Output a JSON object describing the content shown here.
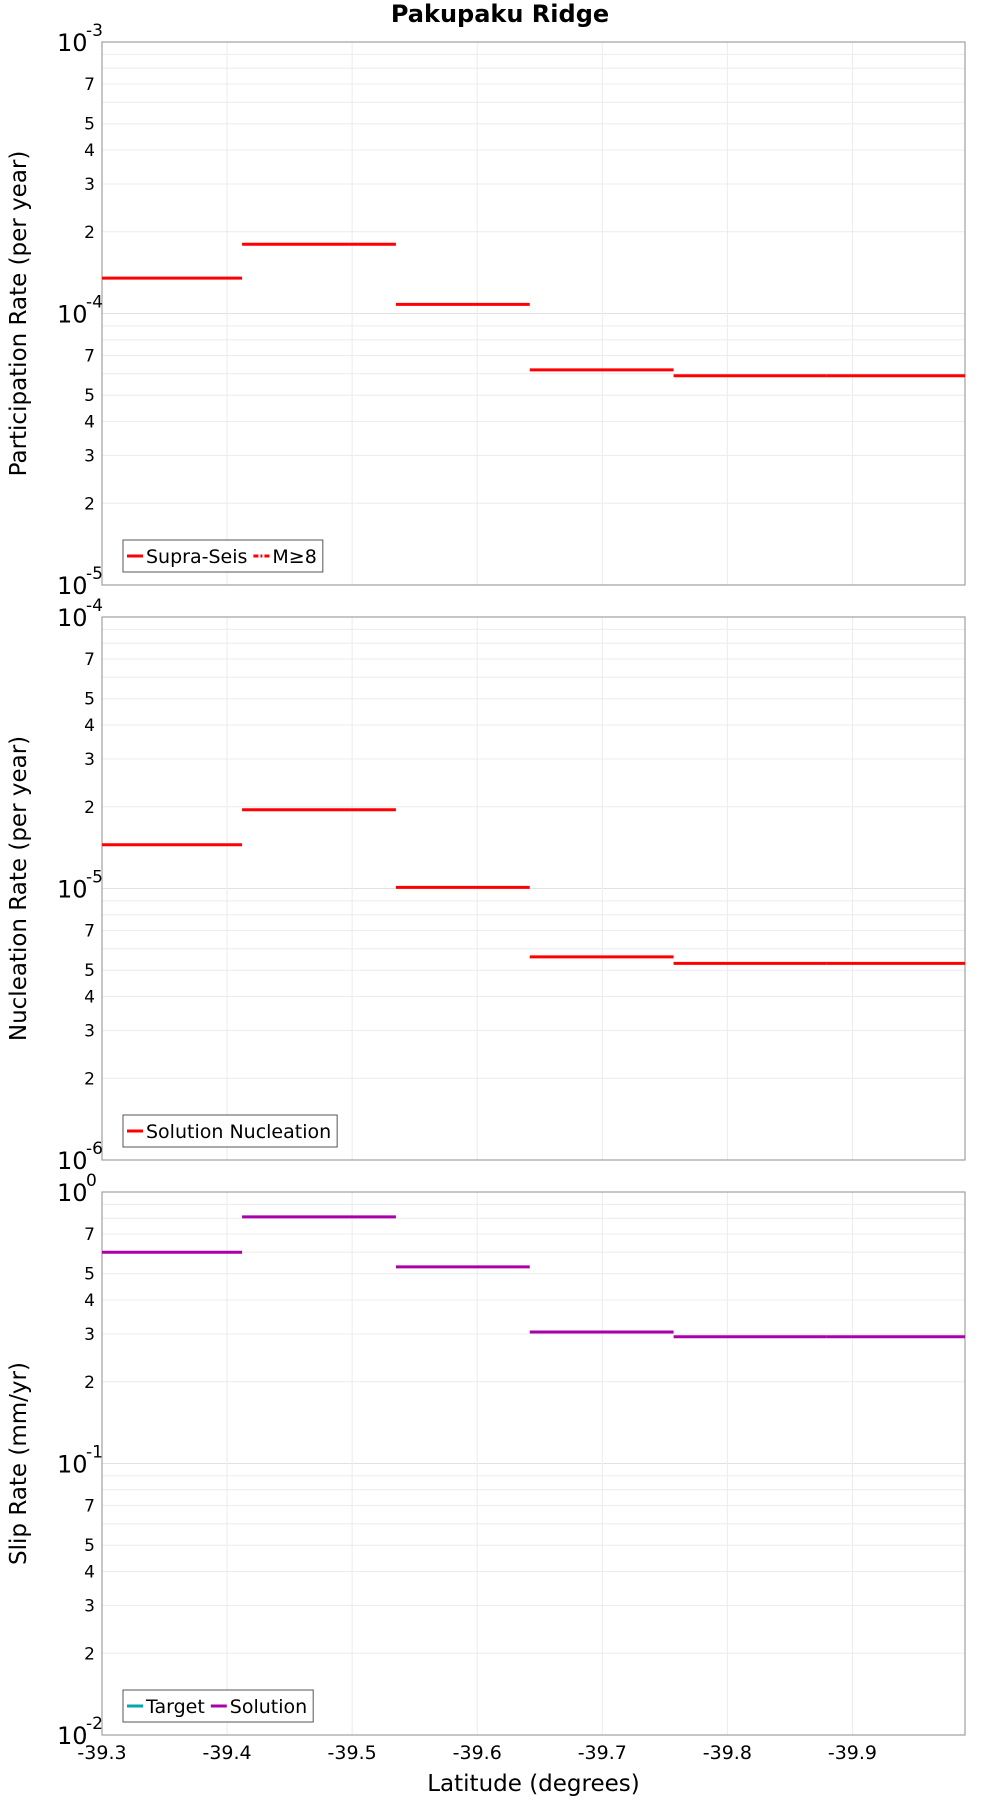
{
  "chart_data": [
    {
      "type": "line",
      "title": "Pakupaku Ridge",
      "ylabel": "Participation Rate (per year)",
      "xlabel": "",
      "scale": "log",
      "ylim": [
        1e-05,
        0.001
      ],
      "xlim": [
        -39.3,
        -39.99
      ],
      "major_ticks": [
        {
          "value": 1e-05,
          "base": "10",
          "exp": "-5"
        },
        {
          "value": 0.0001,
          "base": "10",
          "exp": "-4"
        },
        {
          "value": 0.001,
          "base": "10",
          "exp": "-3"
        }
      ],
      "minor_tick_labels": [
        "2",
        "3",
        "4",
        "5",
        "7"
      ],
      "series": [
        {
          "name": "Supra-Seis",
          "color": "#ff0000",
          "style": "solid",
          "segments": [
            {
              "x0": -39.3,
              "x1": -39.412,
              "y": 0.000135
            },
            {
              "x0": -39.412,
              "x1": -39.535,
              "y": 0.00018
            },
            {
              "x0": -39.535,
              "x1": -39.642,
              "y": 0.000108
            },
            {
              "x0": -39.642,
              "x1": -39.757,
              "y": 6.2e-05
            },
            {
              "x0": -39.757,
              "x1": -39.879,
              "y": 5.9e-05
            },
            {
              "x0": -39.879,
              "x1": -39.99,
              "y": 5.9e-05
            }
          ]
        },
        {
          "name": "M≥8",
          "color": "#ff0000",
          "style": "dashdot",
          "segments": []
        }
      ]
    },
    {
      "type": "line",
      "title": "",
      "ylabel": "Nucleation Rate (per year)",
      "xlabel": "",
      "scale": "log",
      "ylim": [
        1e-06,
        0.0001
      ],
      "xlim": [
        -39.3,
        -39.99
      ],
      "major_ticks": [
        {
          "value": 1e-06,
          "base": "10",
          "exp": "-6"
        },
        {
          "value": 1e-05,
          "base": "10",
          "exp": "-5"
        },
        {
          "value": 0.0001,
          "base": "10",
          "exp": "-4"
        }
      ],
      "minor_tick_labels": [
        "2",
        "3",
        "4",
        "5",
        "7"
      ],
      "series": [
        {
          "name": "Solution Nucleation",
          "color": "#ff0000",
          "style": "solid",
          "segments": [
            {
              "x0": -39.3,
              "x1": -39.412,
              "y": 1.45e-05
            },
            {
              "x0": -39.412,
              "x1": -39.535,
              "y": 1.95e-05
            },
            {
              "x0": -39.535,
              "x1": -39.642,
              "y": 1.01e-05
            },
            {
              "x0": -39.642,
              "x1": -39.757,
              "y": 5.6e-06
            },
            {
              "x0": -39.757,
              "x1": -39.879,
              "y": 5.3e-06
            },
            {
              "x0": -39.879,
              "x1": -39.99,
              "y": 5.3e-06
            }
          ]
        }
      ]
    },
    {
      "type": "line",
      "title": "",
      "ylabel": "Slip Rate (mm/yr)",
      "xlabel": "Latitude (degrees)",
      "scale": "log",
      "ylim": [
        0.01,
        1
      ],
      "xlim": [
        -39.3,
        -39.99
      ],
      "major_ticks": [
        {
          "value": 0.01,
          "base": "10",
          "exp": "-2"
        },
        {
          "value": 0.1,
          "base": "10",
          "exp": "-1"
        },
        {
          "value": 1,
          "base": "10",
          "exp": "0"
        }
      ],
      "minor_tick_labels": [
        "2",
        "3",
        "4",
        "5",
        "7"
      ],
      "x_tick_labels": [
        "-39.3",
        "-39.4",
        "-39.5",
        "-39.6",
        "-39.7",
        "-39.8",
        "-39.9"
      ],
      "x_tick_values": [
        -39.3,
        -39.4,
        -39.5,
        -39.6,
        -39.7,
        -39.8,
        -39.9
      ],
      "series": [
        {
          "name": "Target",
          "color": "#00aaaa",
          "style": "solid",
          "segments": []
        },
        {
          "name": "Solution",
          "color": "#aa00aa",
          "style": "solid",
          "segments": [
            {
              "x0": -39.3,
              "x1": -39.412,
              "y": 0.6
            },
            {
              "x0": -39.412,
              "x1": -39.535,
              "y": 0.81
            },
            {
              "x0": -39.535,
              "x1": -39.642,
              "y": 0.53
            },
            {
              "x0": -39.642,
              "x1": -39.757,
              "y": 0.305
            },
            {
              "x0": -39.757,
              "x1": -39.879,
              "y": 0.293
            },
            {
              "x0": -39.879,
              "x1": -39.99,
              "y": 0.293
            }
          ]
        }
      ]
    }
  ]
}
